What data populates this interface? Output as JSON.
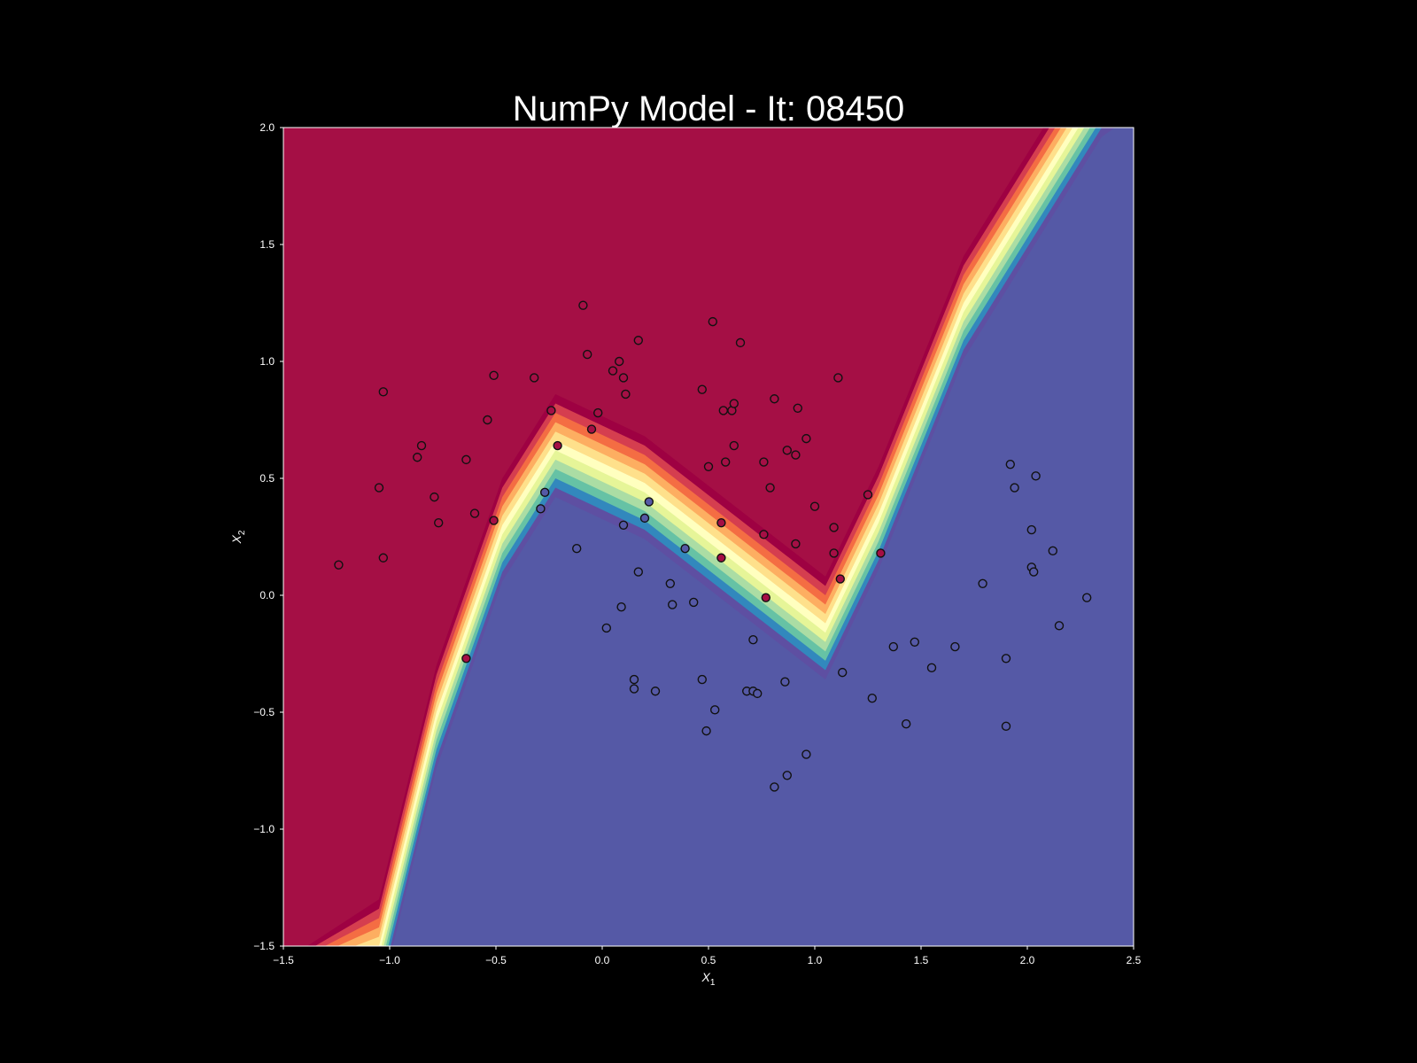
{
  "chart_data": {
    "type": "scatter",
    "title": "NumPy Model - It: 08450",
    "xlabel_main": "X",
    "xlabel_sub": "1",
    "ylabel_main": "X",
    "ylabel_sub": "2",
    "xlim": [
      -1.5,
      2.5
    ],
    "ylim": [
      -1.5,
      2.0
    ],
    "xticks": [
      -1.5,
      -1.0,
      -0.5,
      0.0,
      0.5,
      1.0,
      1.5,
      2.0,
      2.5
    ],
    "yticks": [
      -1.5,
      -1.0,
      -0.5,
      0.0,
      0.5,
      1.0,
      1.5,
      2.0
    ],
    "xtick_labels": [
      "−1.5",
      "−1.0",
      "−0.5",
      "0.0",
      "0.5",
      "1.0",
      "1.5",
      "2.0",
      "2.5"
    ],
    "ytick_labels": [
      "−1.5",
      "−1.0",
      "−0.5",
      "0.0",
      "0.5",
      "1.0",
      "1.5",
      "2.0"
    ],
    "grid": false,
    "background": "decision-boundary contourf, Spectral colormap",
    "colors": {
      "class0": "#a50f45",
      "class1": "#5559a6",
      "figure_bg": "#000000",
      "text": "#ffffff"
    },
    "decision_boundary": [
      [
        -1.05,
        -1.5
      ],
      [
        -0.78,
        -0.5
      ],
      [
        -0.47,
        0.3
      ],
      [
        -0.22,
        0.66
      ],
      [
        0.2,
        0.48
      ],
      [
        1.05,
        -0.12
      ],
      [
        1.3,
        0.35
      ],
      [
        1.7,
        1.25
      ],
      [
        2.35,
        2.2
      ]
    ],
    "band_half_width": 0.2,
    "band_colors": [
      "#5e4fa2",
      "#3288bd",
      "#66c2a5",
      "#abdda4",
      "#e6f598",
      "#ffffbf",
      "#fee08b",
      "#fdae61",
      "#f46d43",
      "#d53e4f",
      "#9e0142"
    ],
    "series": [
      {
        "class": 0,
        "points": [
          [
            -1.24,
            0.13
          ],
          [
            -1.05,
            0.46
          ],
          [
            -1.03,
            0.87
          ],
          [
            -1.03,
            0.16
          ],
          [
            -0.87,
            0.59
          ],
          [
            -0.85,
            0.64
          ],
          [
            -0.79,
            0.42
          ],
          [
            -0.77,
            0.31
          ],
          [
            -0.64,
            0.58
          ],
          [
            -0.6,
            0.35
          ],
          [
            -0.54,
            0.75
          ],
          [
            -0.51,
            0.94
          ],
          [
            -0.51,
            0.32
          ],
          [
            -0.32,
            0.93
          ],
          [
            -0.24,
            0.79
          ],
          [
            -0.21,
            0.64
          ],
          [
            -0.09,
            1.24
          ],
          [
            -0.07,
            1.03
          ],
          [
            -0.05,
            0.71
          ],
          [
            -0.02,
            0.78
          ],
          [
            0.05,
            0.96
          ],
          [
            0.08,
            1.0
          ],
          [
            0.1,
            0.93
          ],
          [
            0.11,
            0.86
          ],
          [
            0.17,
            1.09
          ],
          [
            0.47,
            0.88
          ],
          [
            0.5,
            0.55
          ],
          [
            0.52,
            1.17
          ],
          [
            0.57,
            0.79
          ],
          [
            0.58,
            0.57
          ],
          [
            0.61,
            0.79
          ],
          [
            0.62,
            0.82
          ],
          [
            0.62,
            0.64
          ],
          [
            0.65,
            1.08
          ],
          [
            0.76,
            0.57
          ],
          [
            0.76,
            0.26
          ],
          [
            0.79,
            0.46
          ],
          [
            0.81,
            0.84
          ],
          [
            0.87,
            0.62
          ],
          [
            0.91,
            0.6
          ],
          [
            0.92,
            0.8
          ],
          [
            0.91,
            0.22
          ],
          [
            0.96,
            0.67
          ],
          [
            1.0,
            0.38
          ],
          [
            1.09,
            0.29
          ],
          [
            1.09,
            0.18
          ],
          [
            1.11,
            0.93
          ],
          [
            1.12,
            0.07
          ],
          [
            1.25,
            0.43
          ],
          [
            1.31,
            0.18
          ],
          [
            0.56,
            0.31
          ],
          [
            0.56,
            0.16
          ],
          [
            0.77,
            -0.01
          ],
          [
            -0.64,
            -0.27
          ]
        ]
      },
      {
        "class": 1,
        "points": [
          [
            -0.27,
            0.44
          ],
          [
            -0.29,
            0.37
          ],
          [
            -0.12,
            0.2
          ],
          [
            0.1,
            0.3
          ],
          [
            0.2,
            0.33
          ],
          [
            0.22,
            0.4
          ],
          [
            0.17,
            0.1
          ],
          [
            0.39,
            0.2
          ],
          [
            0.32,
            0.05
          ],
          [
            0.33,
            -0.04
          ],
          [
            0.43,
            -0.03
          ],
          [
            0.02,
            -0.14
          ],
          [
            0.09,
            -0.05
          ],
          [
            0.15,
            -0.36
          ],
          [
            0.15,
            -0.4
          ],
          [
            0.25,
            -0.41
          ],
          [
            0.47,
            -0.36
          ],
          [
            0.49,
            -0.58
          ],
          [
            0.53,
            -0.49
          ],
          [
            0.68,
            -0.41
          ],
          [
            0.71,
            -0.41
          ],
          [
            0.73,
            -0.42
          ],
          [
            0.71,
            -0.19
          ],
          [
            0.86,
            -0.37
          ],
          [
            0.81,
            -0.82
          ],
          [
            0.87,
            -0.77
          ],
          [
            0.96,
            -0.68
          ],
          [
            1.13,
            -0.33
          ],
          [
            1.27,
            -0.44
          ],
          [
            1.37,
            -0.22
          ],
          [
            1.43,
            -0.55
          ],
          [
            1.47,
            -0.2
          ],
          [
            1.55,
            -0.31
          ],
          [
            1.66,
            -0.22
          ],
          [
            1.79,
            0.05
          ],
          [
            1.9,
            -0.27
          ],
          [
            1.9,
            -0.56
          ],
          [
            1.92,
            0.56
          ],
          [
            1.94,
            0.46
          ],
          [
            2.02,
            0.28
          ],
          [
            2.02,
            0.12
          ],
          [
            2.03,
            0.1
          ],
          [
            2.04,
            0.51
          ],
          [
            2.12,
            0.19
          ],
          [
            2.15,
            -0.13
          ],
          [
            2.28,
            -0.01
          ]
        ]
      }
    ]
  }
}
